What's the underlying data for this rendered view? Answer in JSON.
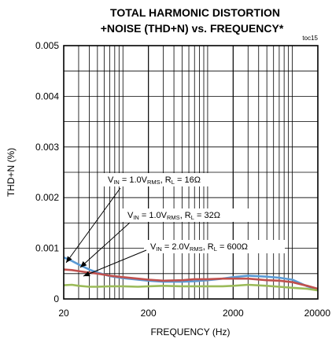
{
  "chart_data": {
    "type": "line",
    "title_line1": "TOTAL HARMONIC DISTORTION",
    "title_line2": "+NOISE (THD+N) vs. FREQUENCY*",
    "tag": "toc15",
    "xlabel": "FREQUENCY (Hz)",
    "ylabel": "THD+N (%)",
    "x_scale": "log",
    "xlim": [
      20,
      20000
    ],
    "ylim": [
      0,
      0.005
    ],
    "x_ticks": [
      20,
      200,
      2000,
      20000
    ],
    "x_tick_labels": [
      "20",
      "200",
      "2000",
      "20000"
    ],
    "y_ticks": [
      0,
      0.001,
      0.002,
      0.003,
      0.004,
      0.005
    ],
    "y_tick_labels": [
      "0",
      "0.001",
      "0.002",
      "0.003",
      "0.004",
      "0.005"
    ],
    "grid": true,
    "series": [
      {
        "color": "#5b9bd5",
        "x": [
          20,
          25,
          30,
          40,
          50,
          70,
          100,
          150,
          200,
          300,
          500,
          700,
          1000,
          1500,
          2000,
          3000,
          5000,
          7000,
          10000,
          15000,
          20000
        ],
        "y": [
          0.00082,
          0.00075,
          0.00068,
          0.00058,
          0.00052,
          0.00045,
          0.00041,
          0.00038,
          0.00036,
          0.00034,
          0.00034,
          0.00035,
          0.00037,
          0.0004,
          0.00043,
          0.00046,
          0.00044,
          0.00042,
          0.00038,
          0.00025,
          0.00018
        ]
      },
      {
        "color": "#c0504d",
        "x": [
          20,
          25,
          30,
          40,
          50,
          70,
          100,
          150,
          200,
          300,
          500,
          700,
          1000,
          1500,
          2000,
          3000,
          5000,
          7000,
          10000,
          15000,
          20000
        ],
        "y": [
          0.00058,
          0.00057,
          0.00055,
          0.00052,
          0.0005,
          0.00046,
          0.00043,
          0.0004,
          0.00038,
          0.00036,
          0.00037,
          0.00039,
          0.00039,
          0.0004,
          0.0004,
          0.0004,
          0.00037,
          0.00036,
          0.00033,
          0.00026,
          0.0002
        ]
      },
      {
        "color": "#9bbb59",
        "x": [
          20,
          25,
          30,
          40,
          50,
          70,
          100,
          150,
          200,
          300,
          500,
          700,
          1000,
          1500,
          2000,
          3000,
          5000,
          7000,
          10000,
          15000,
          20000
        ],
        "y": [
          0.00027,
          0.00028,
          0.00026,
          0.00024,
          0.00024,
          0.00025,
          0.00025,
          0.00024,
          0.00025,
          0.00026,
          0.00025,
          0.00025,
          0.00025,
          0.00025,
          0.00026,
          0.00028,
          0.00026,
          0.00024,
          0.00022,
          0.0002,
          0.00017
        ]
      }
    ],
    "annotations": [
      {
        "v": "V",
        "v_sub": "IN",
        "mid": " = 1.0V",
        "mid_sub": "RMS",
        "r": ", R",
        "r_sub": "L",
        "val": " = 16Ω"
      },
      {
        "v": "V",
        "v_sub": "IN",
        "mid": " = 1.0V",
        "mid_sub": "RMS",
        "r": ", R",
        "r_sub": "L",
        "val": " = 32Ω"
      },
      {
        "v": "V",
        "v_sub": "IN",
        "mid": " = 2.0V",
        "mid_sub": "RMS",
        "r": ", R",
        "r_sub": "L",
        "val": " = 600Ω"
      }
    ]
  }
}
